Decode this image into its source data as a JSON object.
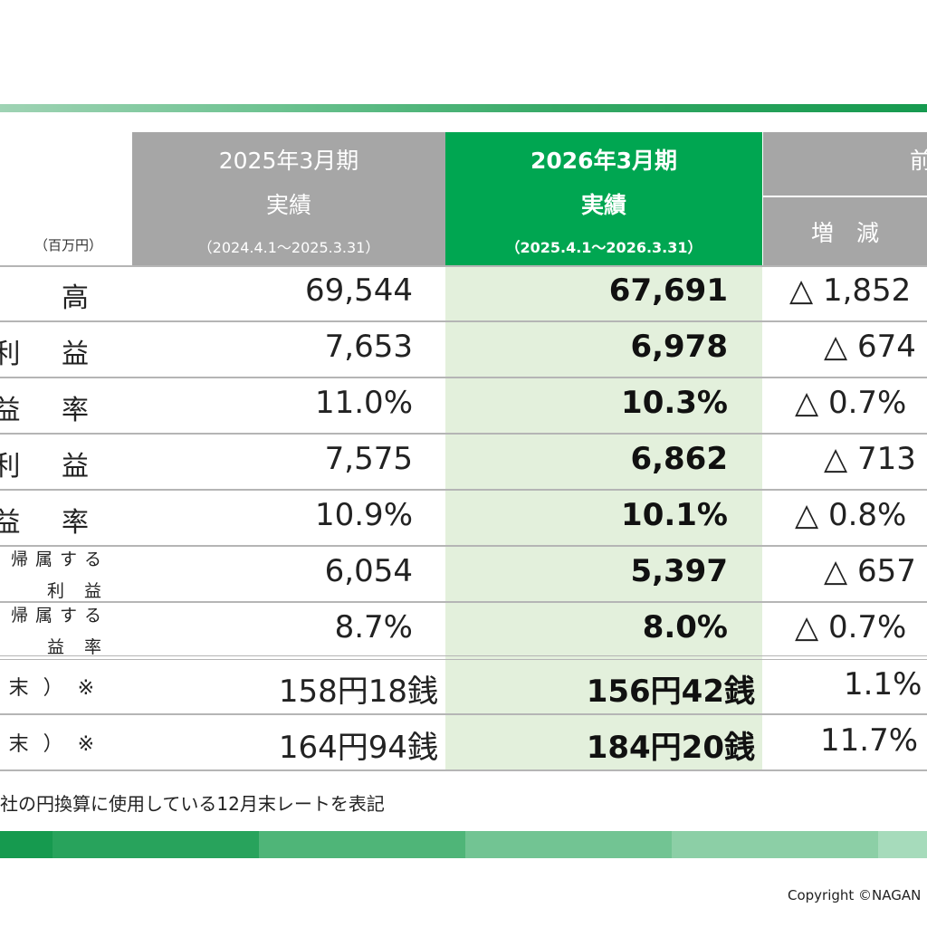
{
  "header": {
    "unit": "（百万円）",
    "prev": {
      "title": "2025年3月期",
      "subtitle": "実績",
      "period": "（2024.4.1～2025.3.31）"
    },
    "curr": {
      "title": "2026年3月期",
      "subtitle": "実績",
      "period": "（2025.4.1～2026.3.31）"
    },
    "diff": {
      "title": "前",
      "sub": "増　減"
    }
  },
  "rows": [
    {
      "label": "高",
      "prev": "69,544",
      "curr": "67,691",
      "diff": "△ 1,852"
    },
    {
      "label": "利 益",
      "prev": "7,653",
      "curr": "6,978",
      "diff": "△ 674"
    },
    {
      "label": "益 率",
      "prev": "11.0%",
      "curr": "10.3%",
      "diff": "△ 0.7%"
    },
    {
      "label": "利 益",
      "prev": "7,575",
      "curr": "6,862",
      "diff": "△ 713"
    },
    {
      "label": "益 率",
      "prev": "10.9%",
      "curr": "10.1%",
      "diff": "△ 0.8%"
    },
    {
      "label1": "帰属する",
      "label2": "利 益",
      "prev": "6,054",
      "curr": "5,397",
      "diff": "△ 657"
    },
    {
      "label1": "帰属する",
      "label2": "益 率",
      "prev": "8.7%",
      "curr": "8.0%",
      "diff": "△ 0.7%"
    },
    {
      "label": "末）※",
      "prev": "158円18銭",
      "curr": "156円42銭",
      "diff": "1.1%"
    },
    {
      "label": "末）※",
      "prev": "164円94銭",
      "curr": "184円20銭",
      "diff": "11.7%"
    }
  ],
  "footnote": "社の円換算に使用している12月末レートを表記",
  "copyright": "Copyright ©NAGAN",
  "colors": {
    "header_gray": "#a6a6a6",
    "header_green": "#00a651",
    "column_highlight": "#e3f0dc",
    "stripe": [
      "#9fd3b4",
      "#6cc290",
      "#36a966",
      "#169a4f"
    ]
  }
}
